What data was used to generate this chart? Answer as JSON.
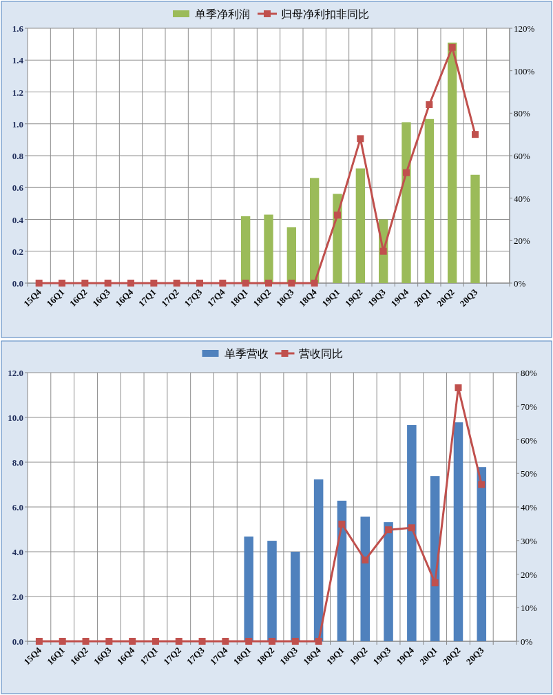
{
  "chart_data": [
    {
      "type": "bar",
      "categories": [
        "15Q4",
        "16Q1",
        "16Q2",
        "16Q3",
        "16Q4",
        "17Q1",
        "17Q2",
        "17Q3",
        "17Q4",
        "18Q1",
        "18Q2",
        "18Q3",
        "18Q4",
        "19Q1",
        "19Q2",
        "19Q3",
        "19Q4",
        "20Q1",
        "20Q2",
        "20Q3",
        null
      ],
      "series": [
        {
          "name": "单季净利润",
          "type": "bar",
          "color": "#9bbb59",
          "values": [
            null,
            null,
            null,
            null,
            null,
            null,
            null,
            null,
            null,
            0.42,
            0.43,
            0.35,
            0.66,
            0.56,
            0.72,
            0.4,
            1.01,
            1.03,
            1.51,
            0.68,
            null
          ]
        },
        {
          "name": "归母净利扣非同比",
          "type": "line",
          "axis": "y2",
          "color": "#c0504d",
          "values": [
            0,
            0,
            0,
            0,
            0,
            0,
            0,
            0,
            0,
            0,
            0,
            0,
            0,
            32,
            68,
            15,
            52,
            84,
            111,
            70,
            null
          ]
        }
      ],
      "ylim": [
        0,
        1.6
      ],
      "yticks": [
        {
          "value": 0,
          "label": "0.0"
        },
        {
          "value": 0.2,
          "label": "0.2"
        },
        {
          "value": 0.4,
          "label": "0.4"
        },
        {
          "value": 0.6,
          "label": "0.6"
        },
        {
          "value": 0.8,
          "label": "0.8"
        },
        {
          "value": 1.0,
          "label": "1.0"
        },
        {
          "value": 1.2,
          "label": "1.2"
        },
        {
          "value": 1.4,
          "label": "1.4"
        },
        {
          "value": 1.6,
          "label": "1.6"
        }
      ],
      "y2lim": [
        0,
        120
      ],
      "y2ticks": [
        {
          "value": 0,
          "label": "0%"
        },
        {
          "value": 20,
          "label": "20%"
        },
        {
          "value": 40,
          "label": "40%"
        },
        {
          "value": 60,
          "label": "60%"
        },
        {
          "value": 80,
          "label": "80%"
        },
        {
          "value": 100,
          "label": "100%"
        },
        {
          "value": 120,
          "label": "120%"
        }
      ],
      "grid": true,
      "legend": "top",
      "marker": "square"
    },
    {
      "type": "bar",
      "categories": [
        "15Q4",
        "16Q1",
        "16Q2",
        "16Q3",
        "16Q4",
        "17Q1",
        "17Q2",
        "17Q3",
        "17Q4",
        "18Q1",
        "18Q2",
        "18Q3",
        "18Q4",
        "19Q1",
        "19Q2",
        "19Q3",
        "19Q4",
        "20Q1",
        "20Q2",
        "20Q3",
        null
      ],
      "series": [
        {
          "name": "单季营收",
          "type": "bar",
          "color": "#4f81bd",
          "values": [
            null,
            null,
            null,
            null,
            null,
            null,
            null,
            null,
            null,
            4.68,
            4.49,
            4.0,
            7.23,
            6.28,
            5.57,
            5.32,
            9.66,
            7.38,
            9.78,
            7.78,
            null
          ]
        },
        {
          "name": "营收同比",
          "type": "line",
          "axis": "y2",
          "color": "#c0504d",
          "values": [
            0,
            0,
            0,
            0,
            0,
            0,
            0,
            0,
            0,
            0,
            0,
            0,
            0,
            34.9,
            24.2,
            33.2,
            33.8,
            17.4,
            75.5,
            46.7,
            null
          ]
        }
      ],
      "ylim": [
        0,
        12
      ],
      "yticks": [
        {
          "value": 0,
          "label": "0.0"
        },
        {
          "value": 2,
          "label": "2.0"
        },
        {
          "value": 4,
          "label": "4.0"
        },
        {
          "value": 6,
          "label": "6.0"
        },
        {
          "value": 8,
          "label": "8.0"
        },
        {
          "value": 10,
          "label": "10.0"
        },
        {
          "value": 12,
          "label": "12.0"
        }
      ],
      "y2lim": [
        0,
        80
      ],
      "y2ticks": [
        {
          "value": 0,
          "label": "0%"
        },
        {
          "value": 10,
          "label": "10%"
        },
        {
          "value": 20,
          "label": "20%"
        },
        {
          "value": 30,
          "label": "30%"
        },
        {
          "value": 40,
          "label": "40%"
        },
        {
          "value": 50,
          "label": "50%"
        },
        {
          "value": 60,
          "label": "60%"
        },
        {
          "value": 70,
          "label": "70%"
        },
        {
          "value": 80,
          "label": "80%"
        }
      ],
      "grid": true,
      "legend": "top",
      "marker": "square"
    }
  ]
}
